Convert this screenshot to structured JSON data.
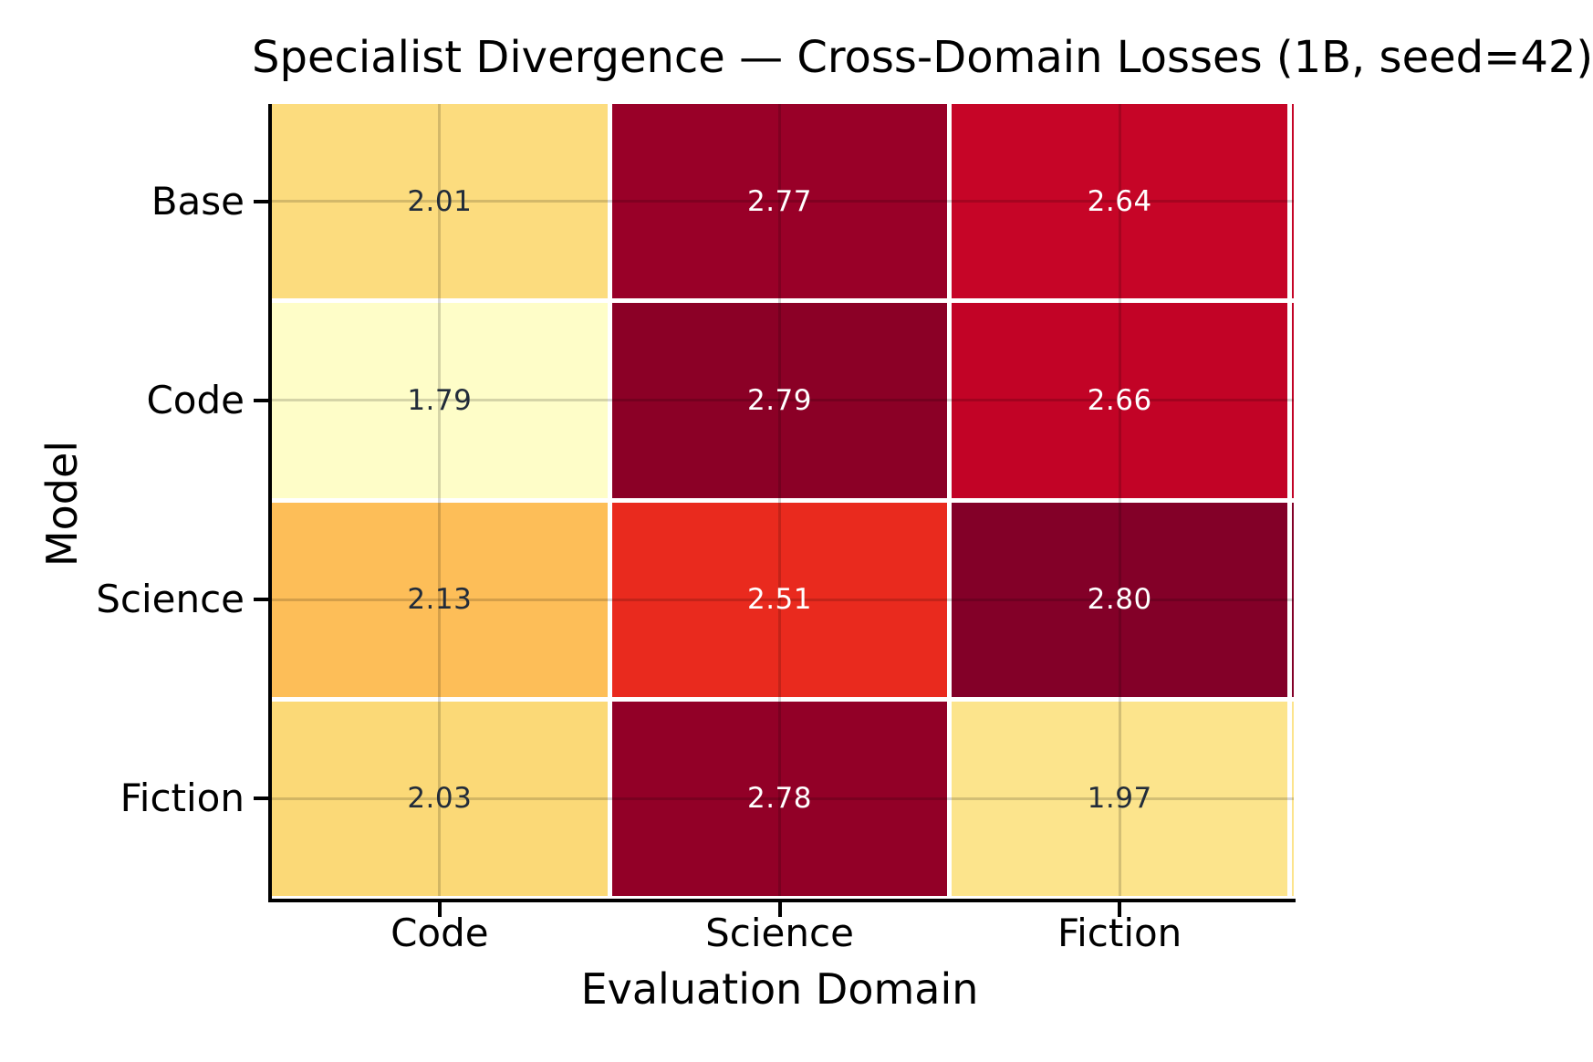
{
  "figure": {
    "title": "Specialist Divergence — Cross-Domain Losses (1B, seed=42)",
    "x_axis_label": "Evaluation Domain",
    "y_axis_label": "Model"
  },
  "chart_data": {
    "type": "heatmap",
    "title": "Specialist Divergence — Cross-Domain Losses (1B, seed=42)",
    "xlabel": "Evaluation Domain",
    "ylabel": "Model",
    "columns": [
      "Code",
      "Science",
      "Fiction"
    ],
    "rows": [
      "Base",
      "Code",
      "Science",
      "Fiction"
    ],
    "values": [
      [
        2.01,
        2.77,
        2.64
      ],
      [
        1.79,
        2.79,
        2.66
      ],
      [
        2.13,
        2.51,
        2.8
      ],
      [
        2.03,
        2.78,
        1.97
      ]
    ],
    "value_labels": [
      [
        "2.01",
        "2.77",
        "2.64"
      ],
      [
        "1.79",
        "2.79",
        "2.66"
      ],
      [
        "2.13",
        "2.51",
        "2.80"
      ],
      [
        "2.03",
        "2.78",
        "1.97"
      ]
    ],
    "vmin": 1.79,
    "vmax": 2.8,
    "colormap": "YlOrRd",
    "grid_on": true,
    "legend_position": "none",
    "cell_colors": [
      [
        "#FCDC7E",
        "#990028",
        "#C60527"
      ],
      [
        "#FEFDC8",
        "#8B0026",
        "#C20326"
      ],
      [
        "#FDBE58",
        "#E92A1E",
        "#830028"
      ],
      [
        "#FBD977",
        "#920027",
        "#FCE48C"
      ]
    ],
    "text_colors": [
      [
        "#222C3A",
        "#FFFFFF",
        "#FFFFFF"
      ],
      [
        "#222C3A",
        "#FFFFFF",
        "#FFFFFF"
      ],
      [
        "#222C3A",
        "#FFFFFF",
        "#FFFFFF"
      ],
      [
        "#222C3A",
        "#FFFFFF",
        "#222C3A"
      ]
    ],
    "colors": {
      "background": "#FFFFFF",
      "spine": "#000000",
      "tick_label": "#000000",
      "gridline": "rgba(0,0,0,0.16)",
      "annotation_dark": "#222C3A",
      "annotation_light": "#FFFFFF"
    }
  }
}
